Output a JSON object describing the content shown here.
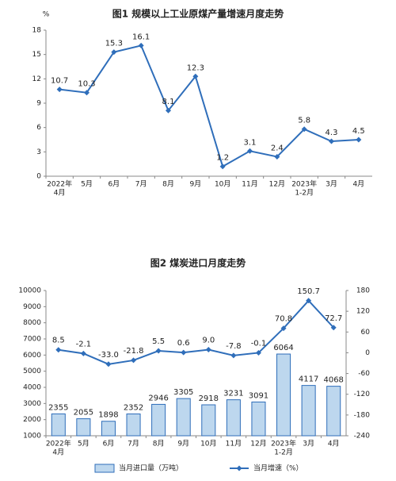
{
  "chart_data": [
    {
      "type": "line",
      "title": "图1  规模以上工业原煤产量增速月度走势",
      "y_unit": "%",
      "categories": [
        [
          "2022年",
          "4月"
        ],
        [
          "5月"
        ],
        [
          "6月"
        ],
        [
          "7月"
        ],
        [
          "8月"
        ],
        [
          "9月"
        ],
        [
          "10月"
        ],
        [
          "11月"
        ],
        [
          "12月"
        ],
        [
          "2023年",
          "1-2月"
        ],
        [
          "3月"
        ],
        [
          "4月"
        ]
      ],
      "values": [
        10.7,
        10.3,
        15.3,
        16.1,
        8.1,
        12.3,
        1.2,
        3.1,
        2.4,
        5.8,
        4.3,
        4.5
      ],
      "color": "#2f6eba",
      "ylim": [
        0,
        18
      ],
      "yticks": [
        0,
        3,
        6,
        9,
        12,
        15,
        18
      ]
    },
    {
      "type": "bar_line",
      "title": "图2  煤炭进口月度走势",
      "categories": [
        [
          "2022年",
          "4月"
        ],
        [
          "5月"
        ],
        [
          "6月"
        ],
        [
          "7月"
        ],
        [
          "8月"
        ],
        [
          "9月"
        ],
        [
          "10月"
        ],
        [
          "11月"
        ],
        [
          "12月"
        ],
        [
          "2023年",
          "1-2月"
        ],
        [
          "3月"
        ],
        [
          "4月"
        ]
      ],
      "series": [
        {
          "name": "当月进口量（万吨）",
          "color": "#bdd7ee",
          "values": [
            2355,
            2055,
            1898,
            2352,
            2946,
            3305,
            2918,
            3231,
            3091,
            6064,
            4117,
            4068
          ]
        },
        {
          "name": "当月增速（%）",
          "color": "#2f6eba",
          "axis": "y2",
          "values": [
            8.5,
            -2.1,
            -33.0,
            -21.8,
            5.5,
            0.6,
            9.0,
            -7.8,
            -0.1,
            70.8,
            150.7,
            72.7
          ],
          "value_labels": [
            "8.5",
            "-2.1",
            "-33.0",
            "-21.8",
            "5.5",
            "0.6",
            "9.0",
            "-7.8",
            "-0.1",
            "70.8",
            "150.7",
            "72.7"
          ]
        }
      ],
      "ylim": [
        1000,
        10000
      ],
      "yticks": [
        1000,
        2000,
        3000,
        4000,
        5000,
        6000,
        7000,
        8000,
        9000,
        10000
      ],
      "y2lim": [
        -240,
        180
      ],
      "y2ticks": [
        -240,
        -180,
        -120,
        -60,
        0,
        60,
        120,
        180
      ]
    }
  ]
}
